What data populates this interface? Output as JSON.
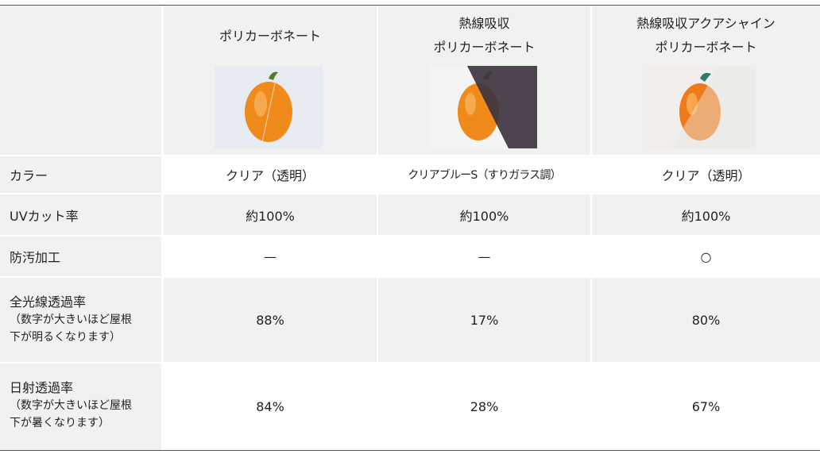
{
  "columns": [
    {
      "title_lines": [
        "ポリカーボネート"
      ],
      "image": "pepper-photo"
    },
    {
      "title_lines": [
        "熱線吸収",
        "ポリカーボネート"
      ],
      "image": "pepper-photo-heat-absorbing"
    },
    {
      "title_lines": [
        "熱線吸収アクアシャイン",
        "ポリカーボネート"
      ],
      "image": "pepper-photo-aqua-shine"
    }
  ],
  "rows": [
    {
      "label": "カラー",
      "values": [
        "クリア（透明）",
        "クリアブルーS（すりガラス調）",
        "クリア（透明）"
      ]
    },
    {
      "label": "UVカット率",
      "values": [
        "約100%",
        "約100%",
        "約100%"
      ]
    },
    {
      "label": "防汚加工",
      "values": [
        "—",
        "—",
        "○"
      ]
    },
    {
      "label": "全光線透過率",
      "note_lines": [
        "（数字が大きいほど屋根",
        "下が明るくなります）"
      ],
      "values": [
        "88%",
        "17%",
        "80%"
      ]
    },
    {
      "label": "日射透過率",
      "note_lines": [
        "（数字が大きいほど屋根",
        "下が暑くなります）"
      ],
      "values": [
        "84%",
        "28%",
        "67%"
      ]
    }
  ],
  "colors": {
    "header_gray": "#f1f1f1",
    "rule": "#555555"
  }
}
